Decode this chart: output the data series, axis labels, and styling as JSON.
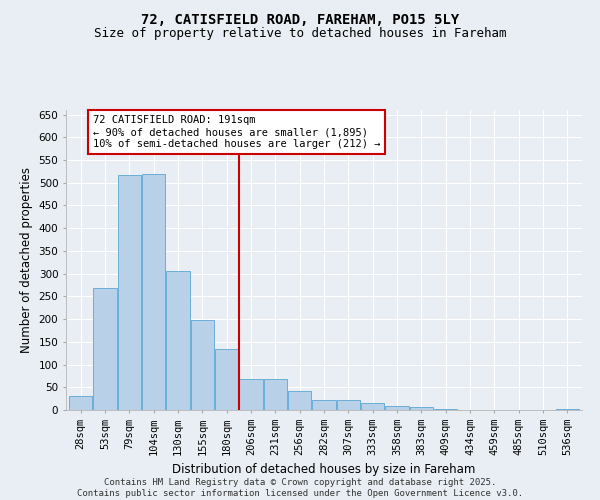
{
  "title_line1": "72, CATISFIELD ROAD, FAREHAM, PO15 5LY",
  "title_line2": "Size of property relative to detached houses in Fareham",
  "xlabel": "Distribution of detached houses by size in Fareham",
  "ylabel": "Number of detached properties",
  "categories": [
    "28sqm",
    "53sqm",
    "79sqm",
    "104sqm",
    "130sqm",
    "155sqm",
    "180sqm",
    "206sqm",
    "231sqm",
    "256sqm",
    "282sqm",
    "307sqm",
    "333sqm",
    "358sqm",
    "383sqm",
    "409sqm",
    "434sqm",
    "459sqm",
    "485sqm",
    "510sqm",
    "536sqm"
  ],
  "values": [
    30,
    268,
    518,
    520,
    305,
    198,
    135,
    68,
    68,
    42,
    23,
    23,
    15,
    8,
    6,
    2,
    1,
    1,
    1,
    0,
    3
  ],
  "bar_color": "#b8d0e8",
  "bar_edge_color": "#6aaed6",
  "vline_x": 6.5,
  "vline_color": "#cc0000",
  "annotation_line1": "72 CATISFIELD ROAD: 191sqm",
  "annotation_line2": "← 90% of detached houses are smaller (1,895)",
  "annotation_line3": "10% of semi-detached houses are larger (212) →",
  "annotation_box_color": "#cc0000",
  "ylim": [
    0,
    660
  ],
  "yticks": [
    0,
    50,
    100,
    150,
    200,
    250,
    300,
    350,
    400,
    450,
    500,
    550,
    600,
    650
  ],
  "footer_text": "Contains HM Land Registry data © Crown copyright and database right 2025.\nContains public sector information licensed under the Open Government Licence v3.0.",
  "background_color": "#e8eef4",
  "grid_color": "#ffffff",
  "title_fontsize": 10,
  "subtitle_fontsize": 9,
  "axis_label_fontsize": 8.5,
  "tick_fontsize": 7.5,
  "annotation_fontsize": 7.5,
  "footer_fontsize": 6.5
}
